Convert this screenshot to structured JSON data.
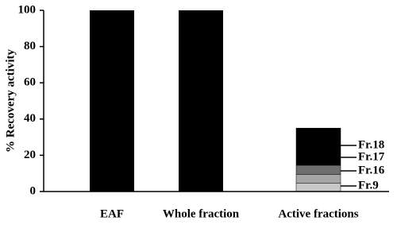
{
  "chart_data": {
    "type": "stacked_bar",
    "y_label": "% Recovery activity",
    "categories": [
      "EAF",
      "Whole fraction",
      "Active fractions"
    ],
    "series": [
      {
        "color": "#000000",
        "values": [
          100,
          100,
          null
        ]
      },
      {
        "name": "Fr.9",
        "color": "#c8c8c8",
        "values": [
          null,
          null,
          4.5
        ]
      },
      {
        "name": "Fr.16",
        "color": "#a6a6a6",
        "values": [
          null,
          null,
          5
        ]
      },
      {
        "name": "Fr.17",
        "color": "#6e6e6e",
        "values": [
          null,
          null,
          5
        ]
      },
      {
        "name": "Fr.18",
        "color": "#000000",
        "values": [
          null,
          null,
          20.5
        ]
      }
    ],
    "ylim": [
      0,
      100
    ],
    "yticks": [
      0,
      20,
      40,
      60,
      80,
      100
    ]
  }
}
